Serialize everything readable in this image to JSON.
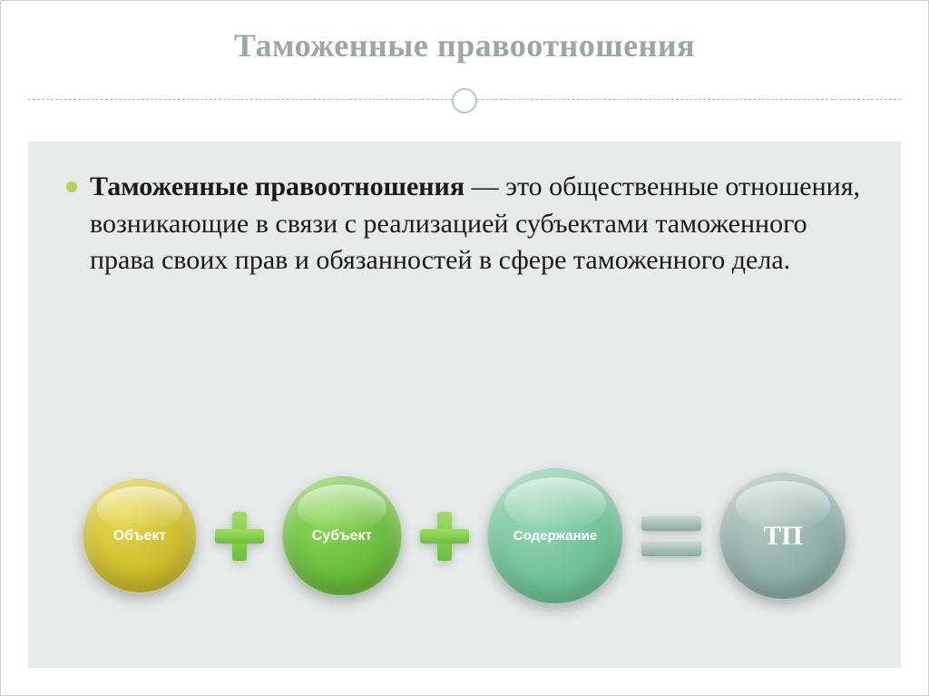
{
  "title": {
    "text": "Таможенные правоотношения",
    "color": "#9aa7a7",
    "fontsize": 36
  },
  "divider": {
    "line_color": "#b8b8b8",
    "circle_border": "#b8c9c9"
  },
  "content": {
    "background_color": "#e6ebea",
    "bullet_color": "#b9cf5a",
    "term": "Таможенные правоотношения",
    "definition_rest": " — это общественные отношения, возникающие в связи с реализацией субъектами таможенного права своих прав и обязанностей в сфере таможенного дела.",
    "text_color": "#1a1a1a",
    "fontsize": 30
  },
  "diagram": {
    "type": "infographic",
    "operators": {
      "plus_color_top": "#a3db62",
      "plus_color_bottom": "#6bbf3a",
      "equals_color_top": "#c9d7d4",
      "equals_color_bottom": "#8ba8a2"
    },
    "circles": [
      {
        "label": "Объект",
        "diameter": 126,
        "bg": "radial-gradient(circle at 35% 30%, #e6d94a, #b8a617)",
        "fontsize": 16
      },
      {
        "label": "Субъект",
        "diameter": 132,
        "bg": "radial-gradient(circle at 35% 30%, #8fd95a, #4fa527)",
        "fontsize": 16
      },
      {
        "label": "Содержание",
        "diameter": 150,
        "bg": "radial-gradient(circle at 35% 30%, #9bd9b6, #4fae7e)",
        "fontsize": 15
      },
      {
        "label": "ТП",
        "diameter": 140,
        "bg": "radial-gradient(circle at 35% 30%, #b8cdc8, #6f9690)",
        "fontsize": 30
      }
    ]
  }
}
